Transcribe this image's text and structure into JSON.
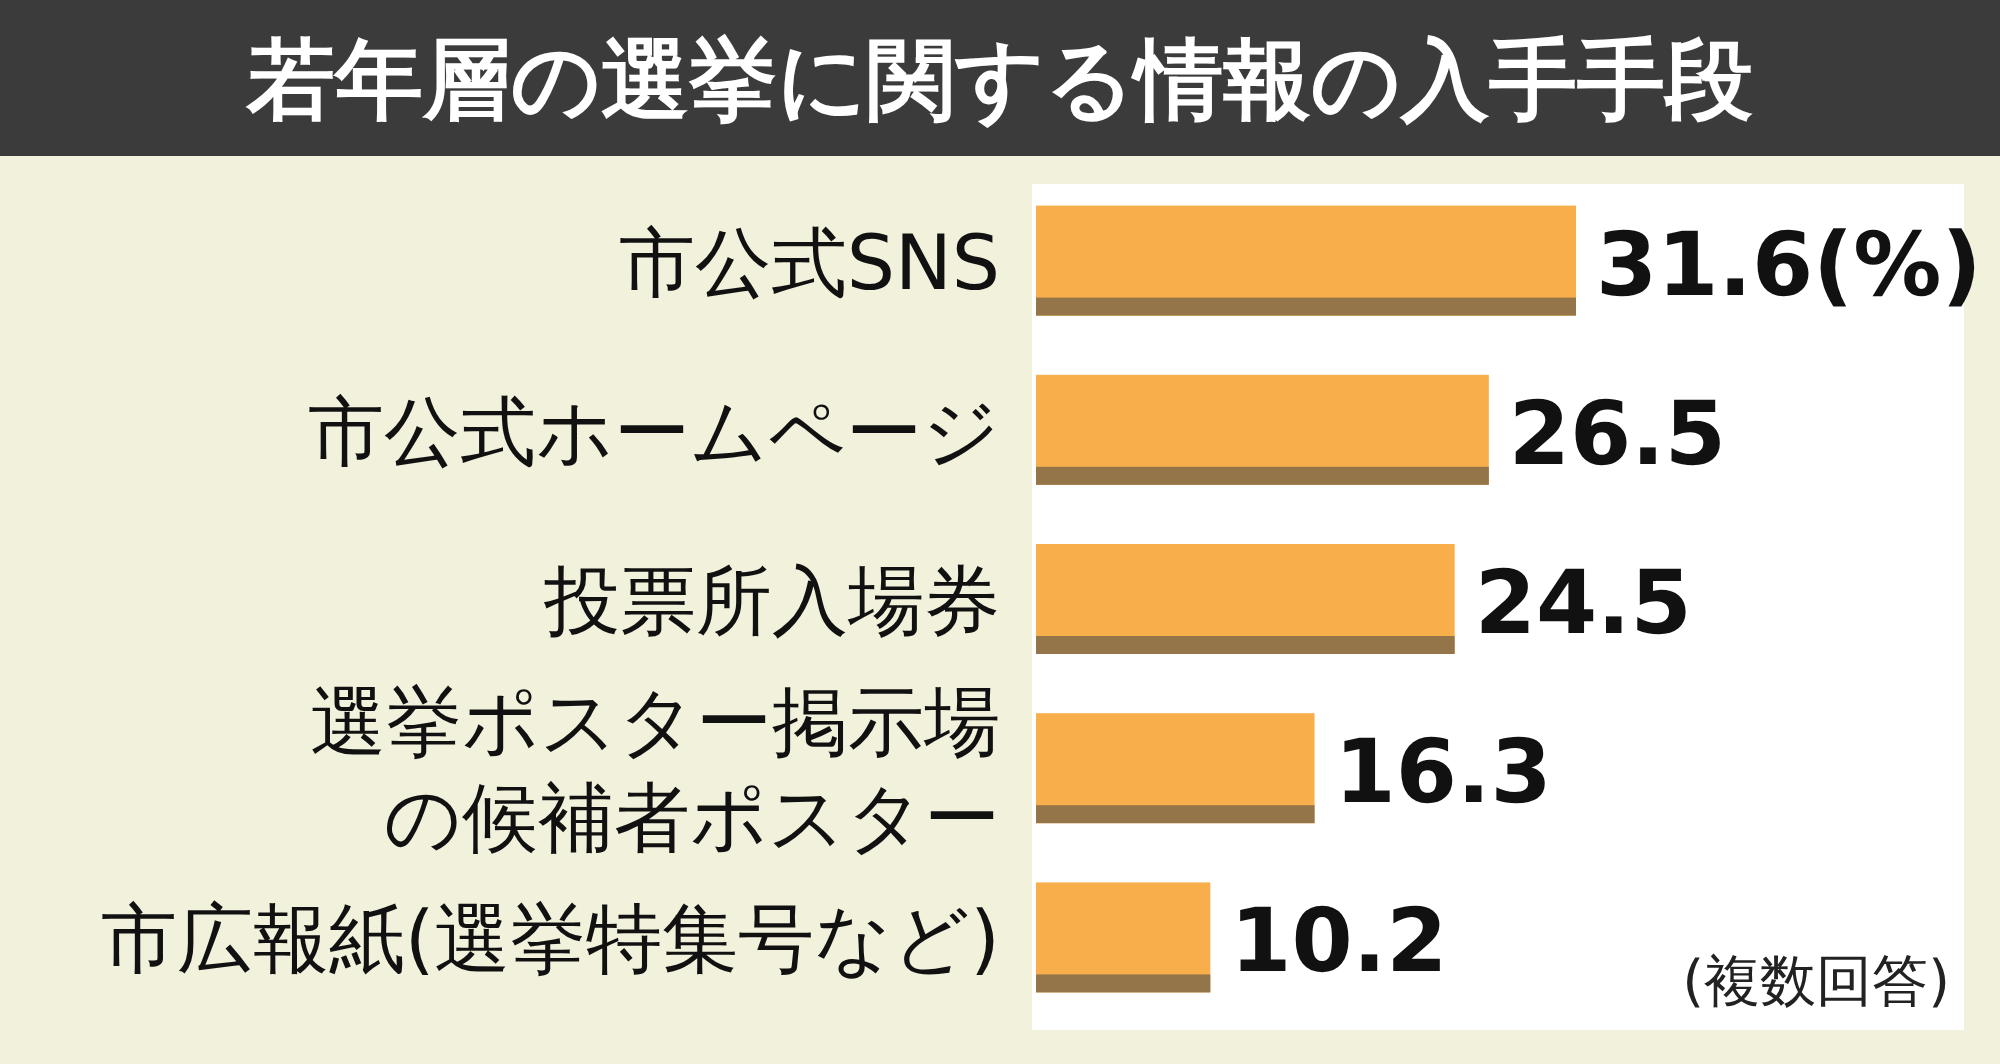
{
  "chart_data": {
    "type": "bar",
    "orientation": "horizontal",
    "title": "若年層の選挙に関する情報の入手手段",
    "categories": [
      "市公式SNS",
      "市公式ホームページ",
      "投票所入場券",
      "選挙ポスター掲示場の候補者ポスター",
      "市広報紙(選挙特集号など)"
    ],
    "values": [
      31.6,
      26.5,
      24.5,
      16.3,
      10.2
    ],
    "value_labels": [
      "31.6(%)",
      "26.5",
      "24.5",
      "16.3",
      "10.2"
    ],
    "color": "#f8ae4a",
    "annotations": [
      "(複数回答)"
    ]
  }
}
